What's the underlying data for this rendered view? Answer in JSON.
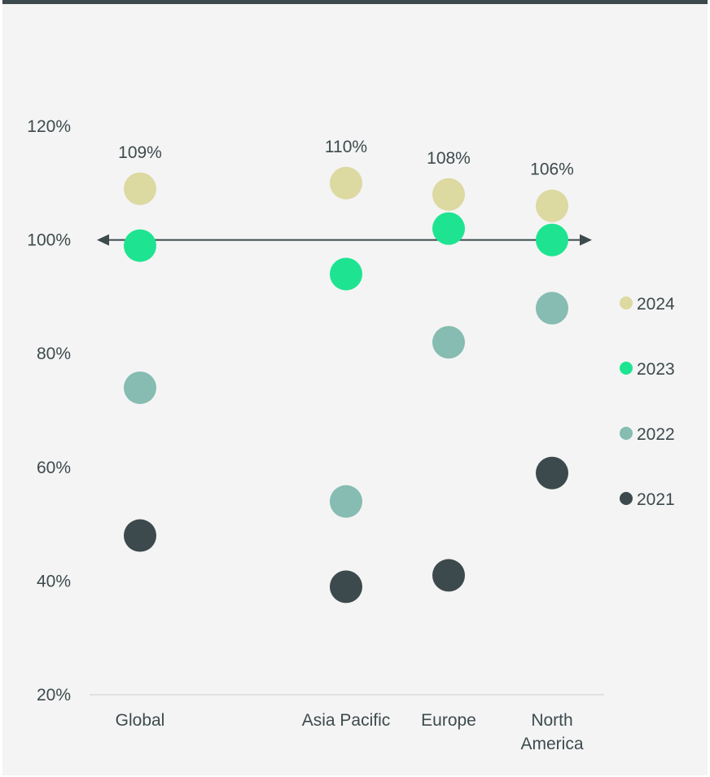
{
  "chart_data": {
    "type": "scatter",
    "categories": [
      "Global",
      "Asia Pacific",
      "Europe",
      "North America"
    ],
    "ylim": [
      20,
      120
    ],
    "yticks": [
      120,
      100,
      80,
      60,
      40,
      20
    ],
    "ytick_suffix": "%",
    "grid": false,
    "reference_line": {
      "value": 100,
      "style": "double-arrow"
    },
    "legend_position": "right",
    "series": [
      {
        "name": "2024",
        "color": "#dcd9a1",
        "values": [
          109,
          110,
          108,
          106
        ]
      },
      {
        "name": "2023",
        "color": "#1ee491",
        "values": [
          99,
          94,
          102,
          100
        ]
      },
      {
        "name": "2022",
        "color": "#86bcb1",
        "values": [
          74,
          54,
          82,
          88
        ]
      },
      {
        "name": "2021",
        "color": "#3d4a4d",
        "values": [
          48,
          39,
          41,
          59
        ]
      }
    ],
    "data_labels": {
      "series": "2024",
      "texts": [
        "109%",
        "110%",
        "108%",
        "106%"
      ]
    }
  }
}
